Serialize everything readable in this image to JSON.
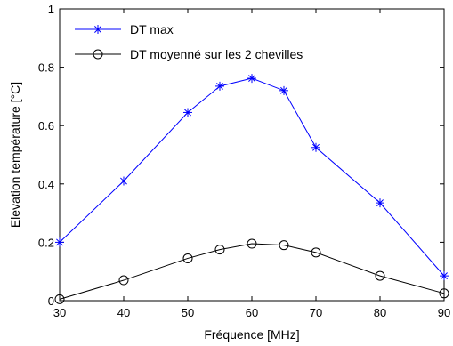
{
  "chart_data": {
    "type": "line",
    "xlabel": "Fréquence [MHz]",
    "ylabel": "Elevation température [°C]",
    "xlim": [
      30,
      90
    ],
    "ylim": [
      0,
      1
    ],
    "xticks": [
      "30",
      "40",
      "50",
      "60",
      "70",
      "80",
      "90"
    ],
    "yticks": [
      "0",
      "0.2",
      "0.4",
      "0.6",
      "0.8",
      "1"
    ],
    "x": [
      30,
      40,
      50,
      55,
      60,
      65,
      70,
      80,
      90
    ],
    "series": [
      {
        "name": "DT max",
        "marker": "star",
        "color": "#0000ff",
        "values": [
          0.2,
          0.41,
          0.645,
          0.735,
          0.762,
          0.72,
          0.525,
          0.335,
          0.085
        ]
      },
      {
        "name": "DT moyenné sur les 2 chevilles",
        "marker": "circle",
        "color": "#000000",
        "values": [
          0.005,
          0.07,
          0.145,
          0.175,
          0.195,
          0.19,
          0.165,
          0.085,
          0.025
        ]
      }
    ],
    "grid": false,
    "legend_position": "top-left"
  }
}
